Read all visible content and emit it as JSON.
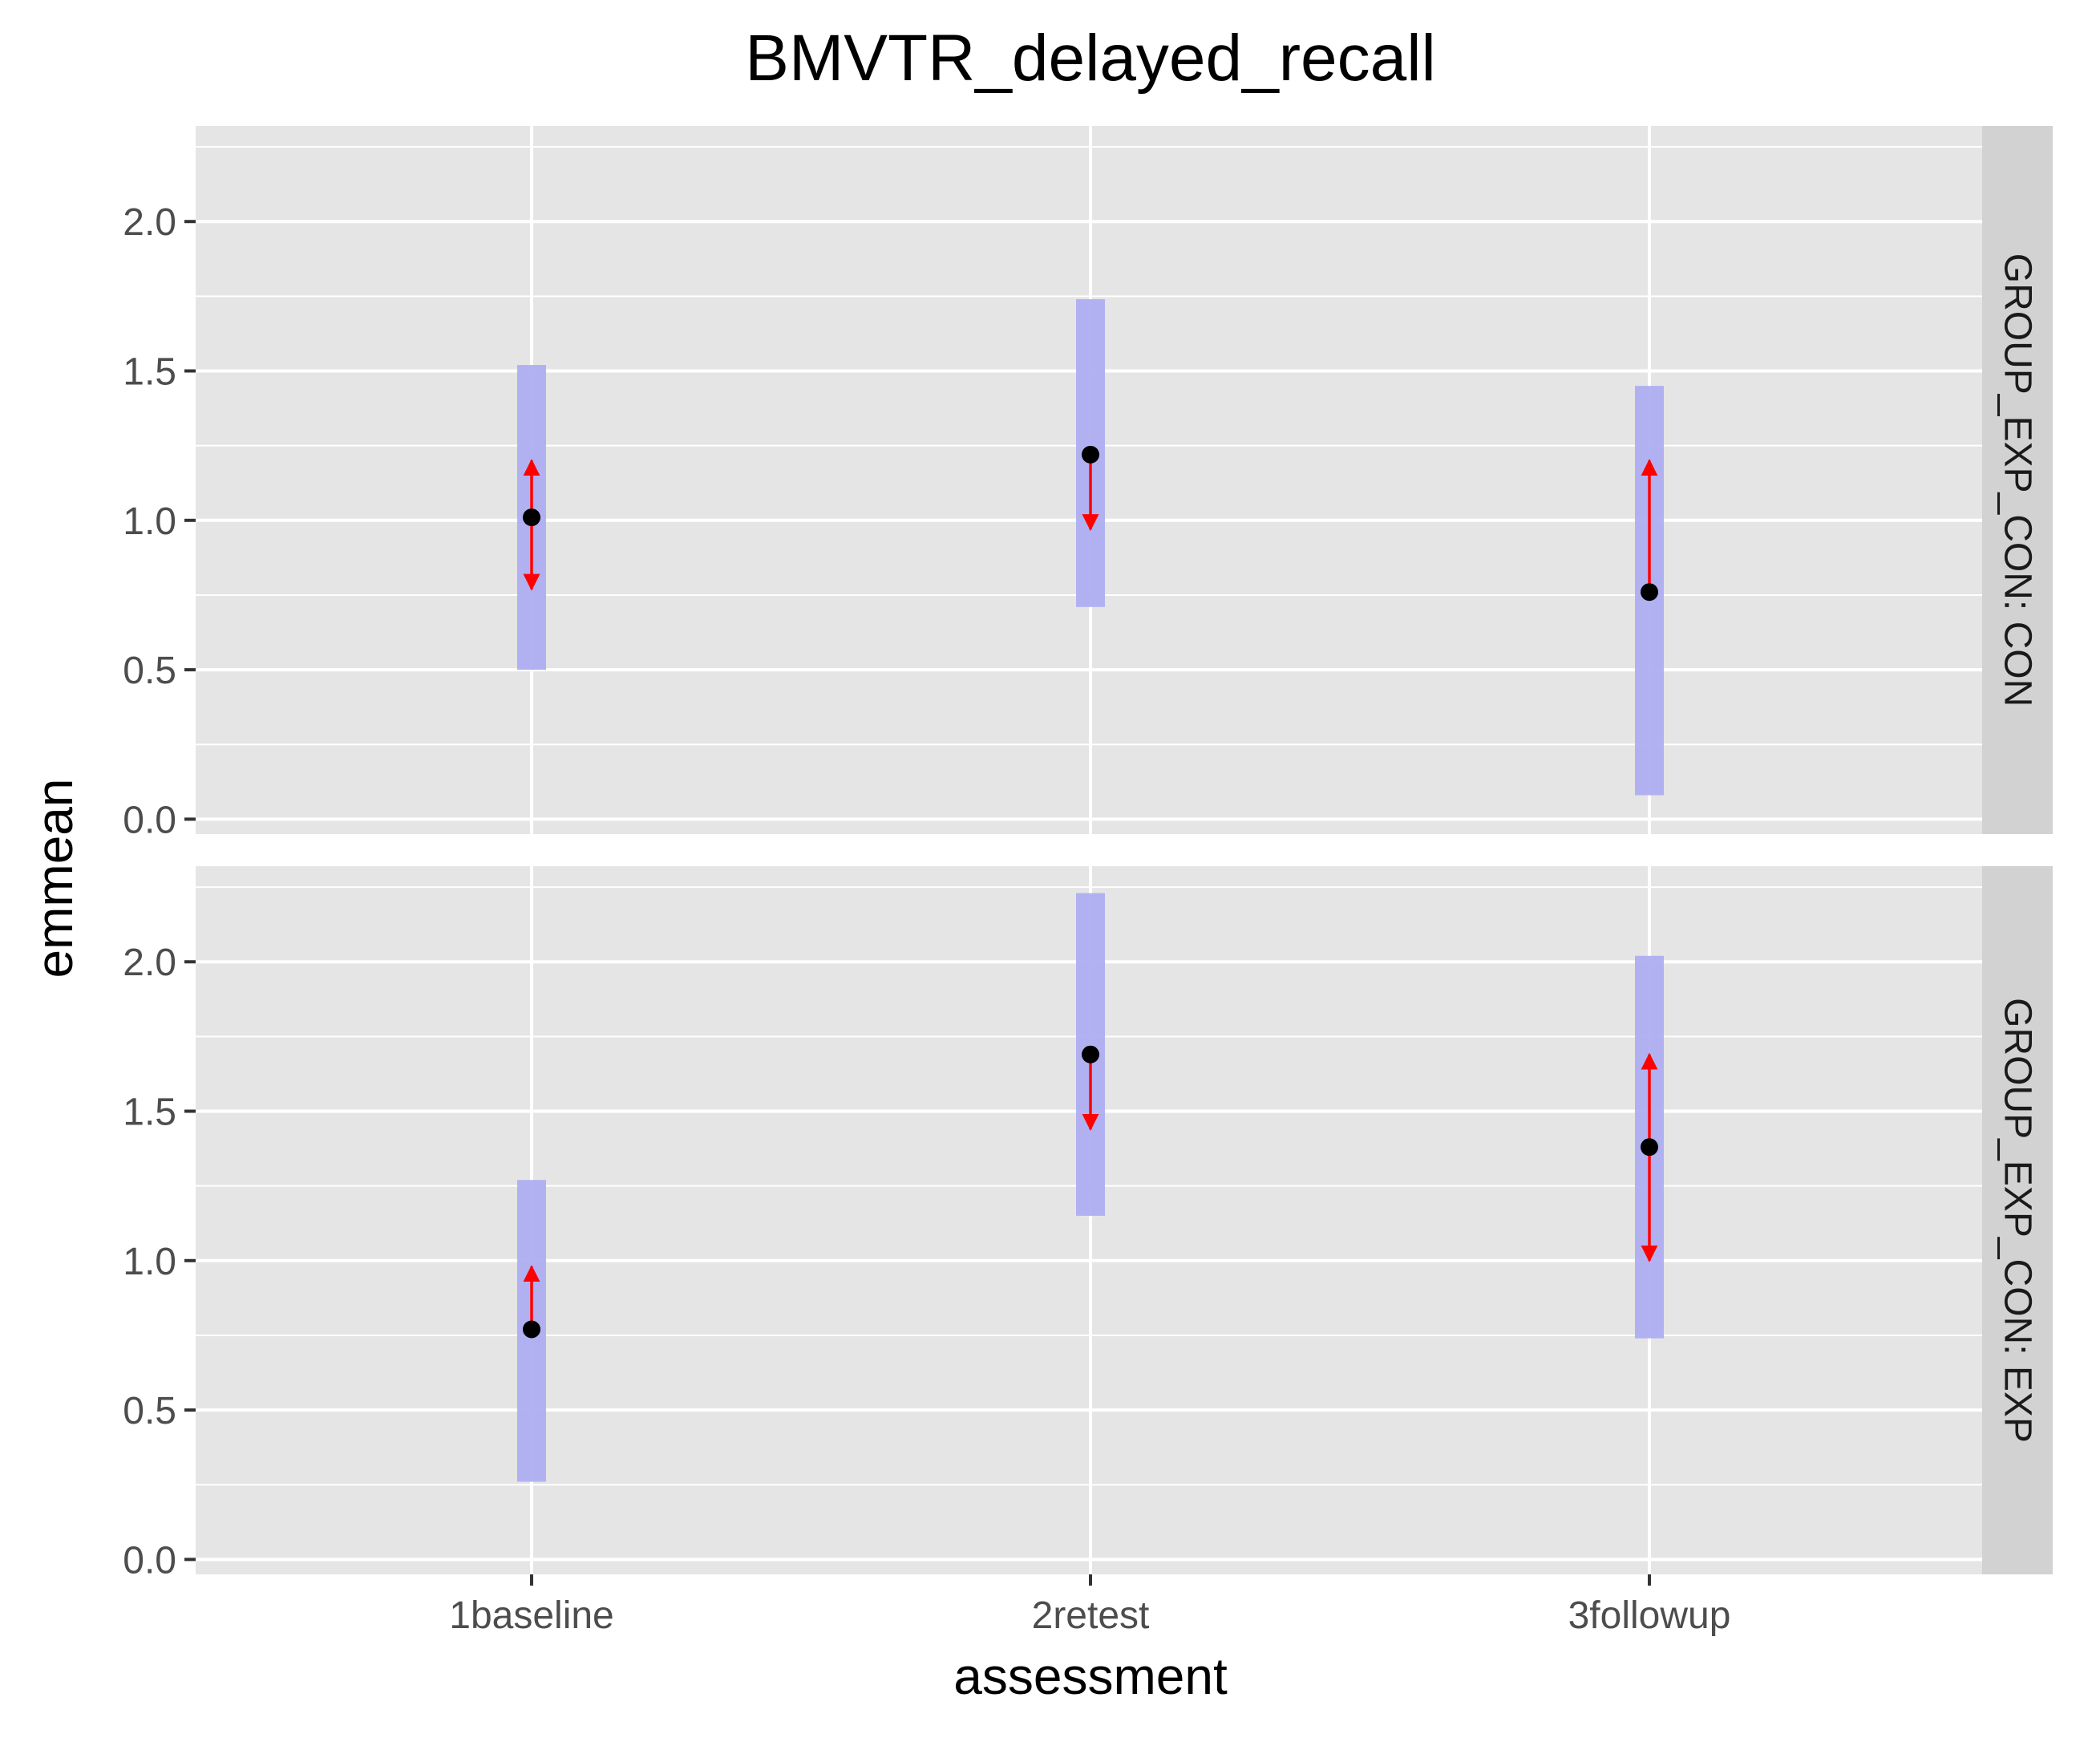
{
  "chart_data": {
    "type": "errorbar",
    "title": "BMVTR_delayed_recall",
    "xlabel": "assessment",
    "ylabel": "emmean",
    "categories": [
      "1baseline",
      "2retest",
      "3followup"
    ],
    "ylim": [
      -0.05,
      2.32
    ],
    "yticks": [
      0.0,
      0.5,
      1.0,
      1.5,
      2.0
    ],
    "ytick_labels": [
      "0.0",
      "0.5",
      "1.0",
      "1.5",
      "2.0"
    ],
    "grid": true,
    "facet_label_prefix": "GROUP_EXP_CON: ",
    "panels": [
      {
        "facet": "GROUP_EXP_CON: CON",
        "emmean": [
          1.01,
          1.22,
          0.76
        ],
        "ci_lower": [
          0.5,
          0.71,
          0.08
        ],
        "ci_upper": [
          1.52,
          1.74,
          1.45
        ],
        "arrow_lower": [
          0.77,
          0.97,
          0.76
        ],
        "arrow_upper": [
          1.2,
          1.22,
          1.2
        ]
      },
      {
        "facet": "GROUP_EXP_CON: EXP",
        "emmean": [
          0.77,
          1.69,
          1.38
        ],
        "ci_lower": [
          0.26,
          1.15,
          0.74
        ],
        "ci_upper": [
          1.27,
          2.23,
          2.02
        ],
        "arrow_lower": [
          0.77,
          1.44,
          1.0
        ],
        "arrow_upper": [
          0.98,
          1.69,
          1.69
        ]
      }
    ],
    "colors": {
      "panel_bg": "#e5e5e5",
      "grid": "#ffffff",
      "strip_bg": "#d2d2d2",
      "ci_band": "#aeaef2",
      "arrow": "#ff0000",
      "point": "#000000"
    }
  }
}
